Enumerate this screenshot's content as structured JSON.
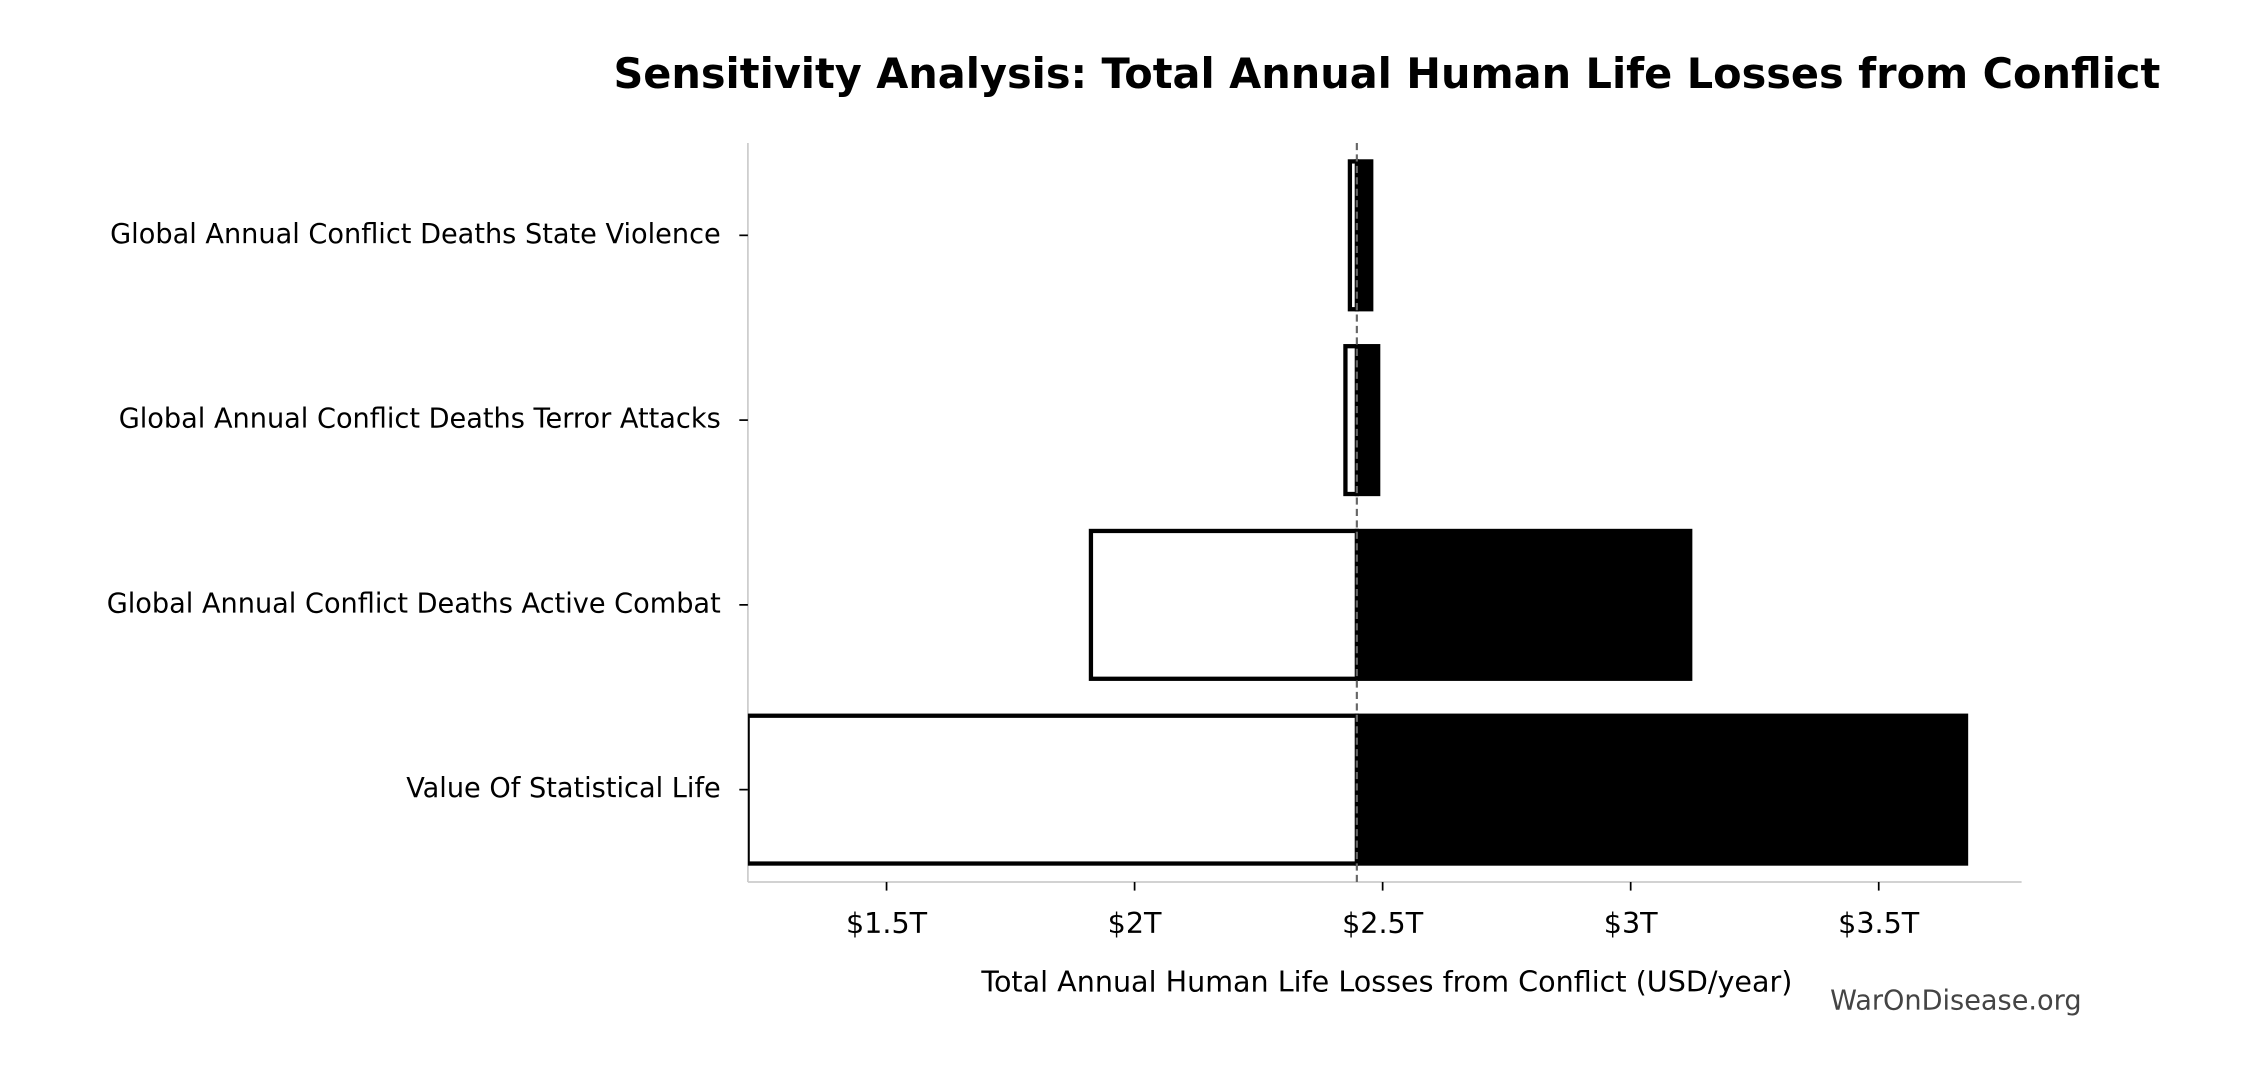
{
  "chart_data": {
    "type": "tornado",
    "title": "Sensitivity Analysis: Total Annual Human Life Losses from Conflict",
    "x_label": "Total Annual Human Life Losses from Conflict (USD/year)",
    "watermark": "WarOnDisease.org",
    "categories": [
      "Global Annual Conflict Deaths State Violence",
      "Global Annual Conflict Deaths Terror Attacks",
      "Global Annual Conflict Deaths Active Combat",
      "Value Of Statistical Life"
    ],
    "baseline": 2.448,
    "low_values": [
      2.434,
      2.425,
      1.912,
      1.22
    ],
    "high_values": [
      2.477,
      2.491,
      3.12,
      3.676
    ],
    "low_color": "#ffffff",
    "high_color": "#000000",
    "xlim": [
      1.2205,
      3.788
    ],
    "xticks": [
      {
        "value": 1.5,
        "label": "$1.5T"
      },
      {
        "value": 2,
        "label": "$2T"
      },
      {
        "value": 2.5,
        "label": "$2.5T"
      },
      {
        "value": 3,
        "label": "$3T"
      },
      {
        "value": 3.5,
        "label": "$3.5T"
      }
    ]
  }
}
